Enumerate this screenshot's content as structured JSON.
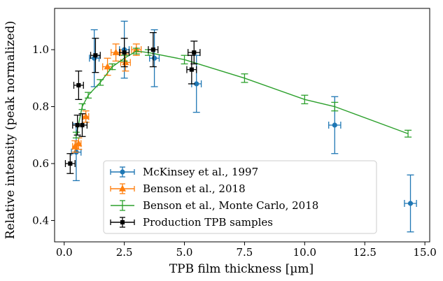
{
  "chart_data": {
    "type": "scatter",
    "xlabel": "TPB film thickness [µm]",
    "ylabel": "Relative intensity (peak normalized)",
    "xlim": [
      -0.4,
      15.2
    ],
    "ylim": [
      0.325,
      1.145
    ],
    "xticks": [
      "0.0",
      "2.5",
      "5.0",
      "7.5",
      "10.0",
      "12.5",
      "15.0"
    ],
    "xtick_values": [
      0,
      2.5,
      5,
      7.5,
      10,
      12.5,
      15
    ],
    "yticks": [
      "0.4",
      "0.6",
      "0.8",
      "1.0"
    ],
    "ytick_values": [
      0.4,
      0.6,
      0.8,
      1.0
    ],
    "grid": false,
    "legend_position": "lower-left",
    "series": [
      {
        "name": "McKinsey et al., 1997",
        "color": "#1f77b4",
        "marker": "circle",
        "style": "errorbar",
        "points": [
          {
            "x": 0.5,
            "y": 0.64,
            "xerr": 0.2,
            "yerr": 0.1
          },
          {
            "x": 1.25,
            "y": 0.97,
            "xerr": 0.2,
            "yerr": 0.1
          },
          {
            "x": 2.5,
            "y": 1.0,
            "xerr": 0.2,
            "yerr": 0.1
          },
          {
            "x": 3.75,
            "y": 0.97,
            "xerr": 0.2,
            "yerr": 0.1
          },
          {
            "x": 5.5,
            "y": 0.88,
            "xerr": 0.2,
            "yerr": 0.1
          },
          {
            "x": 11.25,
            "y": 0.735,
            "xerr": 0.25,
            "yerr": 0.1
          },
          {
            "x": 14.4,
            "y": 0.46,
            "xerr": 0.25,
            "yerr": 0.1
          }
        ]
      },
      {
        "name": "Benson et al., 2018",
        "color": "#ff7f0e",
        "marker": "triangle",
        "style": "errorbar",
        "points": [
          {
            "x": 0.45,
            "y": 0.66,
            "xerr": 0.1,
            "yerr": 0.02
          },
          {
            "x": 0.6,
            "y": 0.67,
            "xerr": 0.1,
            "yerr": 0.02
          },
          {
            "x": 0.9,
            "y": 0.765,
            "xerr": 0.12,
            "yerr": 0.02
          },
          {
            "x": 1.8,
            "y": 0.94,
            "xerr": 0.2,
            "yerr": 0.03
          },
          {
            "x": 2.15,
            "y": 0.99,
            "xerr": 0.2,
            "yerr": 0.03
          },
          {
            "x": 2.55,
            "y": 0.955,
            "xerr": 0.2,
            "yerr": 0.03
          },
          {
            "x": 3.0,
            "y": 1.0,
            "xerr": 0.2,
            "yerr": 0.02
          }
        ]
      },
      {
        "name": "Benson et al., Monte Carlo, 2018",
        "color": "#2ca02c",
        "marker": "none",
        "style": "line",
        "points": [
          {
            "x": 0.5,
            "y": 0.7,
            "yerr": 0.01
          },
          {
            "x": 0.75,
            "y": 0.8,
            "yerr": 0.01
          },
          {
            "x": 1.0,
            "y": 0.84,
            "yerr": 0.01
          },
          {
            "x": 1.5,
            "y": 0.885,
            "yerr": 0.01
          },
          {
            "x": 2.0,
            "y": 0.94,
            "yerr": 0.01
          },
          {
            "x": 2.5,
            "y": 0.97,
            "yerr": 0.01
          },
          {
            "x": 3.0,
            "y": 0.995,
            "yerr": 0.01
          },
          {
            "x": 3.5,
            "y": 0.99,
            "yerr": 0.01
          },
          {
            "x": 5.0,
            "y": 0.965,
            "yerr": 0.015
          },
          {
            "x": 7.5,
            "y": 0.9,
            "yerr": 0.015
          },
          {
            "x": 10.0,
            "y": 0.825,
            "yerr": 0.015
          },
          {
            "x": 11.25,
            "y": 0.8,
            "yerr": 0.015
          },
          {
            "x": 14.3,
            "y": 0.705,
            "yerr": 0.012
          }
        ]
      },
      {
        "name": "Production TPB samples",
        "color": "#000000",
        "marker": "square",
        "style": "errorbar",
        "points": [
          {
            "x": 0.25,
            "y": 0.6,
            "xerr": 0.2,
            "yerr": 0.035
          },
          {
            "x": 0.55,
            "y": 0.735,
            "xerr": 0.2,
            "yerr": 0.035
          },
          {
            "x": 0.6,
            "y": 0.875,
            "xerr": 0.2,
            "yerr": 0.05
          },
          {
            "x": 0.75,
            "y": 0.735,
            "xerr": 0.2,
            "yerr": 0.04
          },
          {
            "x": 1.3,
            "y": 0.98,
            "xerr": 0.2,
            "yerr": 0.06
          },
          {
            "x": 2.5,
            "y": 0.99,
            "xerr": 0.2,
            "yerr": 0.05
          },
          {
            "x": 3.7,
            "y": 1.0,
            "xerr": 0.2,
            "yerr": 0.06
          },
          {
            "x": 5.3,
            "y": 0.93,
            "xerr": 0.2,
            "yerr": 0.05
          },
          {
            "x": 5.4,
            "y": 0.99,
            "xerr": 0.25,
            "yerr": 0.04
          }
        ]
      }
    ]
  }
}
